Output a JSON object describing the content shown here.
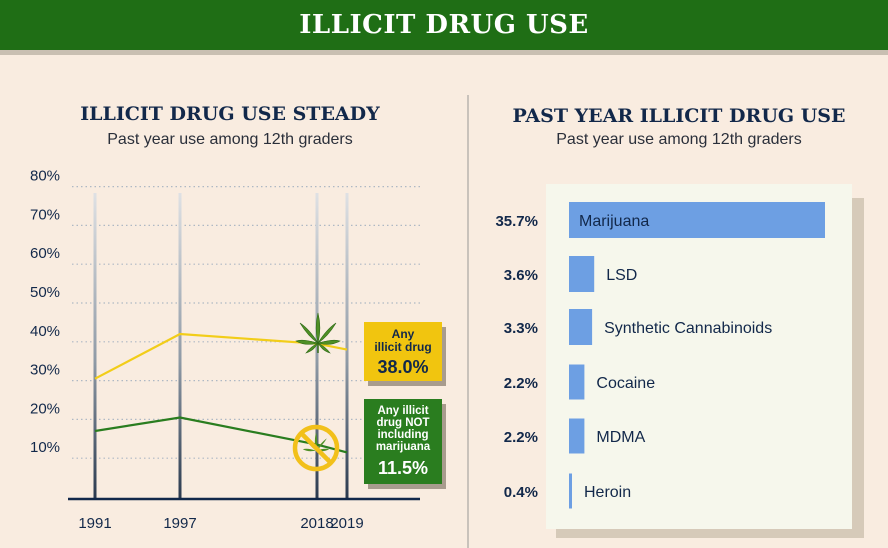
{
  "header": {
    "title": "ILLICIT DRUG USE"
  },
  "colors": {
    "header_green": "#1f6e15",
    "navy": "#12284a",
    "any_line": "#f2cd19",
    "not_marijuana_line": "#2a7d1f",
    "bar_fill": "#6d9fe3",
    "panel": "#f6f7ec"
  },
  "left_chart": {
    "title": "ILLICIT DRUG USE STEADY",
    "subtitle": "Past year use among 12th graders",
    "callouts": {
      "any": {
        "label_lines": [
          "Any",
          "illicit drug"
        ],
        "value": "38.0%"
      },
      "not_marijuana": {
        "label_lines": [
          "Any illicit",
          "drug NOT",
          "including",
          "marijuana"
        ],
        "value": "11.5%"
      }
    },
    "icons": [
      "cannabis-leaf-icon",
      "no-cannabis-icon"
    ]
  },
  "right_chart": {
    "title": "PAST YEAR ILLICIT DRUG USE",
    "subtitle": "Past year use among 12th graders"
  },
  "chart_data": [
    {
      "type": "line",
      "title": "ILLICIT DRUG USE STEADY",
      "subtitle": "Past year use among 12th graders",
      "x": [
        1991,
        1997,
        2018,
        2019
      ],
      "y_ticks": [
        "80%",
        "70%",
        "60%",
        "50%",
        "40%",
        "30%",
        "20%",
        "10%"
      ],
      "ylim": [
        0,
        80
      ],
      "grid": true,
      "series": [
        {
          "name": "Any illicit drug",
          "values": [
            30.5,
            42,
            39.5,
            38.0
          ]
        },
        {
          "name": "Any illicit drug NOT including marijuana",
          "values": [
            17,
            20.5,
            13.5,
            11.5
          ]
        }
      ]
    },
    {
      "type": "bar",
      "title": "PAST YEAR ILLICIT DRUG USE",
      "subtitle": "Past year use among 12th graders",
      "categories": [
        "Marijuana",
        "LSD",
        "Synthetic Cannabinoids",
        "Cocaine",
        "MDMA",
        "Heroin"
      ],
      "values": [
        35.7,
        3.6,
        3.3,
        2.2,
        2.2,
        0.4
      ],
      "value_labels": [
        "35.7%",
        "3.6%",
        "3.3%",
        "2.2%",
        "2.2%",
        "0.4%"
      ]
    }
  ]
}
